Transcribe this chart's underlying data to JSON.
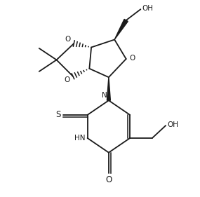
{
  "bg_color": "#ffffff",
  "line_color": "#1a1a1a",
  "line_width": 1.3,
  "font_size": 7.5,
  "xlim": [
    0,
    10
  ],
  "ylim": [
    0,
    10
  ]
}
